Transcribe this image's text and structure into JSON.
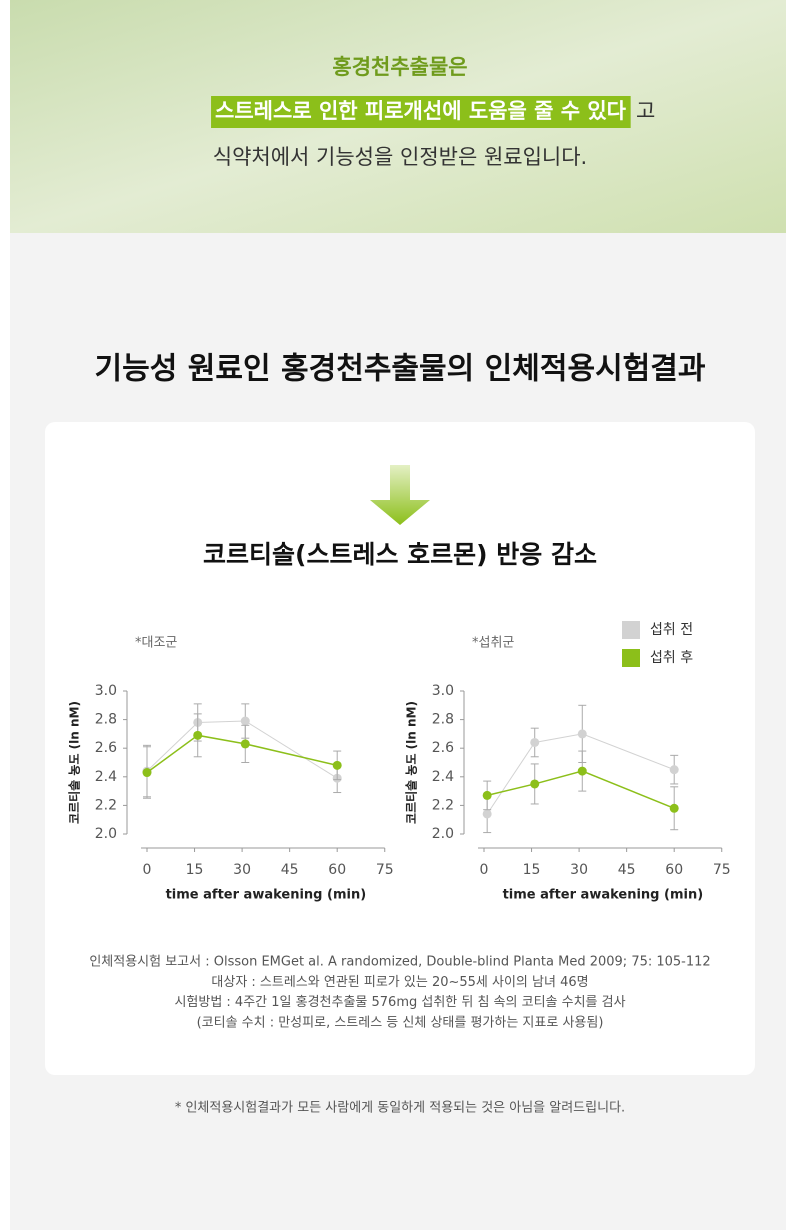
{
  "header": {
    "line1": "홍경천추출물은",
    "highlight": "스트레스로 인한 피로개선에 도움을 줄 수 있다",
    "highlight_suffix": "고",
    "line3": "식약처에서 기능성을 인정받은 원료입니다."
  },
  "section_title": "기능성 원료인 홍경천추출물의 인체적용시험결과",
  "subtitle": "코르티솔(스트레스 호르몬) 반응 감소",
  "chart_data": [
    {
      "type": "line",
      "title": "*대조군",
      "x_label": "time after awakening (min)",
      "y_label": "코르티솔 농도 (ln nM)",
      "x": [
        0,
        16,
        31,
        60
      ],
      "xlim": [
        0,
        75
      ],
      "xticks": [
        0,
        15,
        30,
        45,
        60,
        75
      ],
      "ylim": [
        2.0,
        3.0
      ],
      "yticks": [
        {
          "value": 2.0,
          "label": "2.0"
        },
        {
          "value": 2.2,
          "label": "2.2"
        },
        {
          "value": 2.4,
          "label": "2.4"
        },
        {
          "value": 2.6,
          "label": "2.6"
        },
        {
          "value": 2.8,
          "label": "2.8"
        },
        {
          "value": 3.0,
          "label": "3.0"
        }
      ],
      "series": [
        {
          "color": "#d2d2d2",
          "values": [
            2.44,
            2.78,
            2.79,
            2.39
          ],
          "errors": [
            0.18,
            0.13,
            0.12,
            0.1
          ]
        },
        {
          "color": "#8cbf1a",
          "values": [
            2.43,
            2.69,
            2.63,
            2.48
          ],
          "errors": [
            0.18,
            0.15,
            0.13,
            0.1
          ]
        }
      ]
    },
    {
      "type": "line",
      "title": "*섭취군",
      "x_label": "time after awakening (min)",
      "y_label": "코르티솔 농도 (ln nM)",
      "x": [
        1,
        16,
        31,
        60
      ],
      "xlim": [
        0,
        75
      ],
      "xticks": [
        0,
        15,
        30,
        45,
        60,
        75
      ],
      "ylim": [
        2.0,
        3.0
      ],
      "yticks": [
        {
          "value": 2.0,
          "label": "2.0"
        },
        {
          "value": 2.2,
          "label": "2.2"
        },
        {
          "value": 2.4,
          "label": "2.4"
        },
        {
          "value": 2.6,
          "label": "2.6"
        },
        {
          "value": 2.8,
          "label": "2.8"
        },
        {
          "value": 3.0,
          "label": "3.0"
        }
      ],
      "series": [
        {
          "name": "섭취 전",
          "color": "#d2d2d2",
          "values": [
            2.14,
            2.64,
            2.7,
            2.45
          ],
          "errors": [
            0.13,
            0.1,
            0.2,
            0.1
          ]
        },
        {
          "name": "섭취 후",
          "color": "#8cbf1a",
          "values": [
            2.27,
            2.35,
            2.44,
            2.18
          ],
          "errors": [
            0.1,
            0.14,
            0.14,
            0.15
          ]
        }
      ]
    }
  ],
  "notes": [
    "인체적용시험 보고서 : Olsson EMGet al. A randomized, Double-blind Planta Med 2009; 75: 105-112",
    "대상자 : 스트레스와 연관된 피로가 있는 20~55세 사이의 남녀 46명",
    "시험방법 : 4주간 1일 홍경천추출물 576mg 섭취한 뒤 침 속의 코티솔 수치를 검사",
    "(코티솔 수치 : 만성피로, 스트레스 등 신체 상태를 평가하는 지표로 사용됨)"
  ],
  "footnote": "* 인체적용시험결과가 모든 사람에게 동일하게 적용되는 것은 아님을 알려드립니다."
}
